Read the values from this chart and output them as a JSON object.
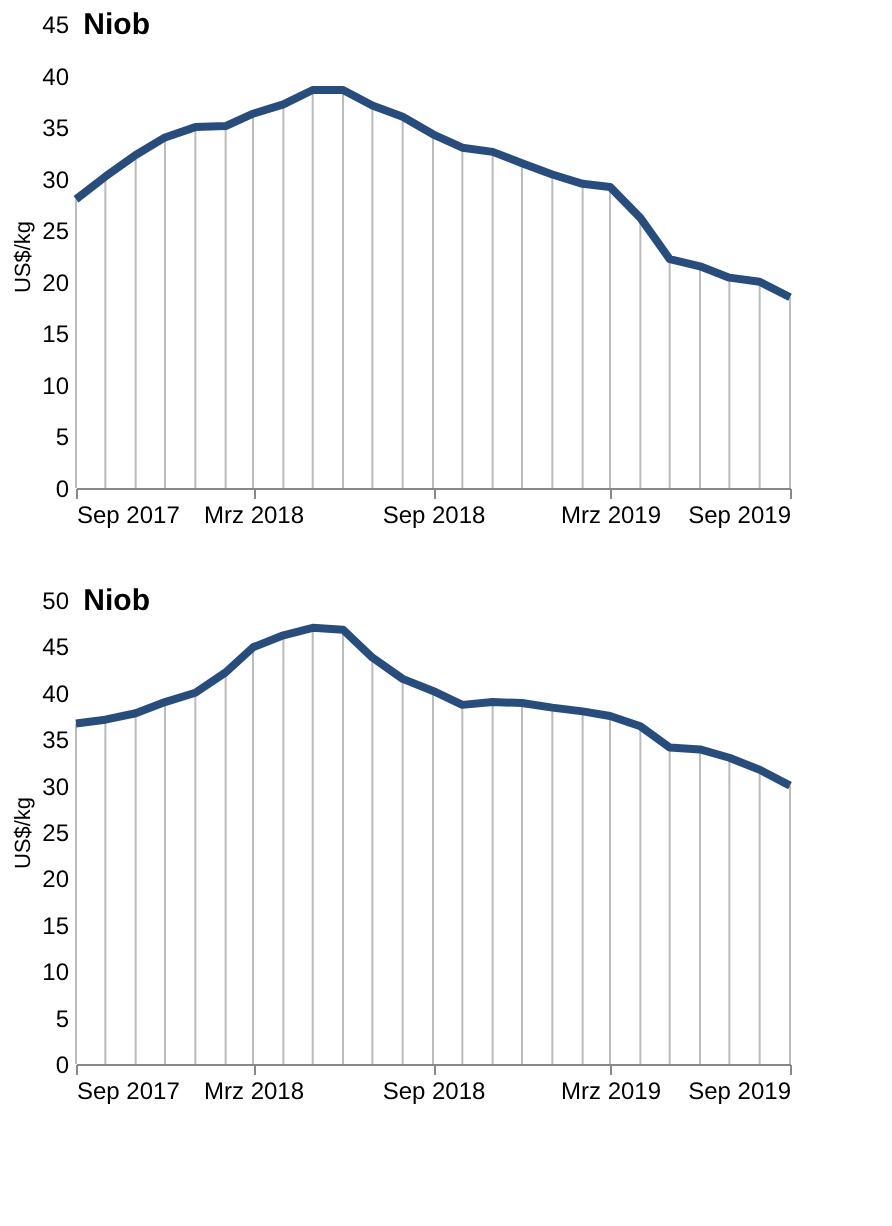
{
  "chart_data": [
    {
      "type": "line",
      "title": "Niob",
      "ylabel": "US$/kg",
      "x": [
        "2017-09",
        "2017-10",
        "2017-11",
        "2017-12",
        "2018-01",
        "2018-02",
        "2018-03",
        "2018-04",
        "2018-05",
        "2018-06",
        "2018-07",
        "2018-08",
        "2018-09",
        "2018-10",
        "2018-11",
        "2018-12",
        "2019-01",
        "2019-02",
        "2019-03",
        "2019-04",
        "2019-05",
        "2019-06",
        "2019-07",
        "2019-08",
        "2019-09"
      ],
      "series": [
        {
          "type": "bar",
          "color": "#bbbbbb",
          "values": [
            28,
            30.2,
            32.3,
            34,
            35,
            35.1,
            36.3,
            37.2,
            38.6,
            38.6,
            37.1,
            36,
            34.3,
            33,
            32.6,
            31.5,
            30.4,
            29.5,
            29.2,
            26.2,
            22.2,
            21.5,
            20.4,
            20,
            18.5
          ]
        },
        {
          "color": "#264d7e",
          "values": [
            28,
            30.2,
            32.3,
            34,
            35,
            35.1,
            36.3,
            37.2,
            38.6,
            38.6,
            37.1,
            36,
            34.3,
            33,
            32.6,
            31.5,
            30.4,
            29.5,
            29.2,
            26.2,
            22.2,
            21.5,
            20.4,
            20,
            18.5
          ]
        }
      ],
      "xlim": [
        "2017-09",
        "2019-09"
      ],
      "xticks": [
        {
          "value": "2017-09",
          "label": "Sep 2017"
        },
        {
          "value": "2018-03",
          "label": "Mrz 2018"
        },
        {
          "value": "2018-09",
          "label": "Sep 2018"
        },
        {
          "value": "2019-03",
          "label": "Mrz 2019"
        },
        {
          "value": "2019-09",
          "label": "Sep 2019"
        }
      ],
      "ylim": [
        0,
        45
      ],
      "yticks": [
        0,
        5,
        10,
        15,
        20,
        25,
        30,
        35,
        40,
        45
      ]
    },
    {
      "type": "line",
      "title": "Niob",
      "ylabel": "US$/kg",
      "x": [
        "2017-09",
        "2017-10",
        "2017-11",
        "2017-12",
        "2018-01",
        "2018-02",
        "2018-03",
        "2018-04",
        "2018-05",
        "2018-06",
        "2018-07",
        "2018-08",
        "2018-09",
        "2018-10",
        "2018-11",
        "2018-12",
        "2019-01",
        "2019-02",
        "2019-03",
        "2019-04",
        "2019-05",
        "2019-06",
        "2019-07",
        "2019-08",
        "2019-09"
      ],
      "series": [
        {
          "type": "bar",
          "color": "#bbbbbb",
          "values": [
            36.7,
            37.1,
            37.8,
            39,
            40,
            42.2,
            44.9,
            46.2,
            47,
            46.8,
            43.8,
            41.5,
            40.2,
            38.7,
            39,
            38.9,
            38.4,
            38,
            37.5,
            36.4,
            34.1,
            33.9,
            33,
            31.7,
            30
          ]
        },
        {
          "color": "#264d7e",
          "values": [
            36.7,
            37.1,
            37.8,
            39,
            40,
            42.2,
            44.9,
            46.2,
            47,
            46.8,
            43.8,
            41.5,
            40.2,
            38.7,
            39,
            38.9,
            38.4,
            38,
            37.5,
            36.4,
            34.1,
            33.9,
            33,
            31.7,
            30
          ]
        }
      ],
      "xlim": [
        "2017-09",
        "2019-09"
      ],
      "xticks": [
        {
          "value": "2017-09",
          "label": "Sep 2017"
        },
        {
          "value": "2018-03",
          "label": "Mrz 2018"
        },
        {
          "value": "2018-09",
          "label": "Sep 2018"
        },
        {
          "value": "2019-03",
          "label": "Mrz 2019"
        },
        {
          "value": "2019-09",
          "label": "Sep 2019"
        }
      ],
      "ylim": [
        0,
        50
      ],
      "yticks": [
        0,
        5,
        10,
        15,
        20,
        25,
        30,
        35,
        40,
        45,
        50
      ]
    }
  ]
}
